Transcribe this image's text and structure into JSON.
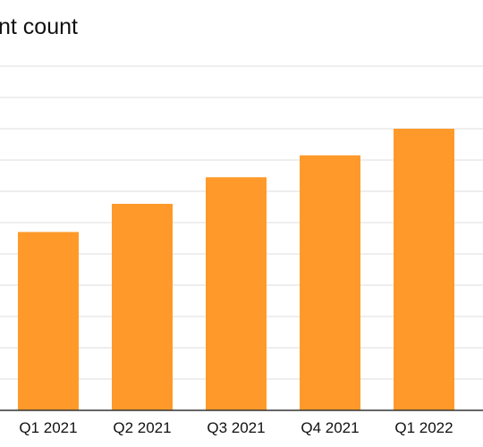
{
  "chart_data": {
    "type": "bar",
    "title": "nt count",
    "categories": [
      "Q1 2021",
      "Q2 2021",
      "Q3 2021",
      "Q4 2021",
      "Q1 2022"
    ],
    "series": [
      {
        "values": [
          5.7,
          6.6,
          7.45,
          8.15,
          9.0
        ]
      }
    ],
    "xlabel": "",
    "ylabel": "",
    "ylim": [
      0,
      11
    ],
    "grid": true,
    "legend": "none",
    "bar_color": "#FF9A2A",
    "grid_color": "#DDDDDD",
    "axis_color": "#333333"
  }
}
